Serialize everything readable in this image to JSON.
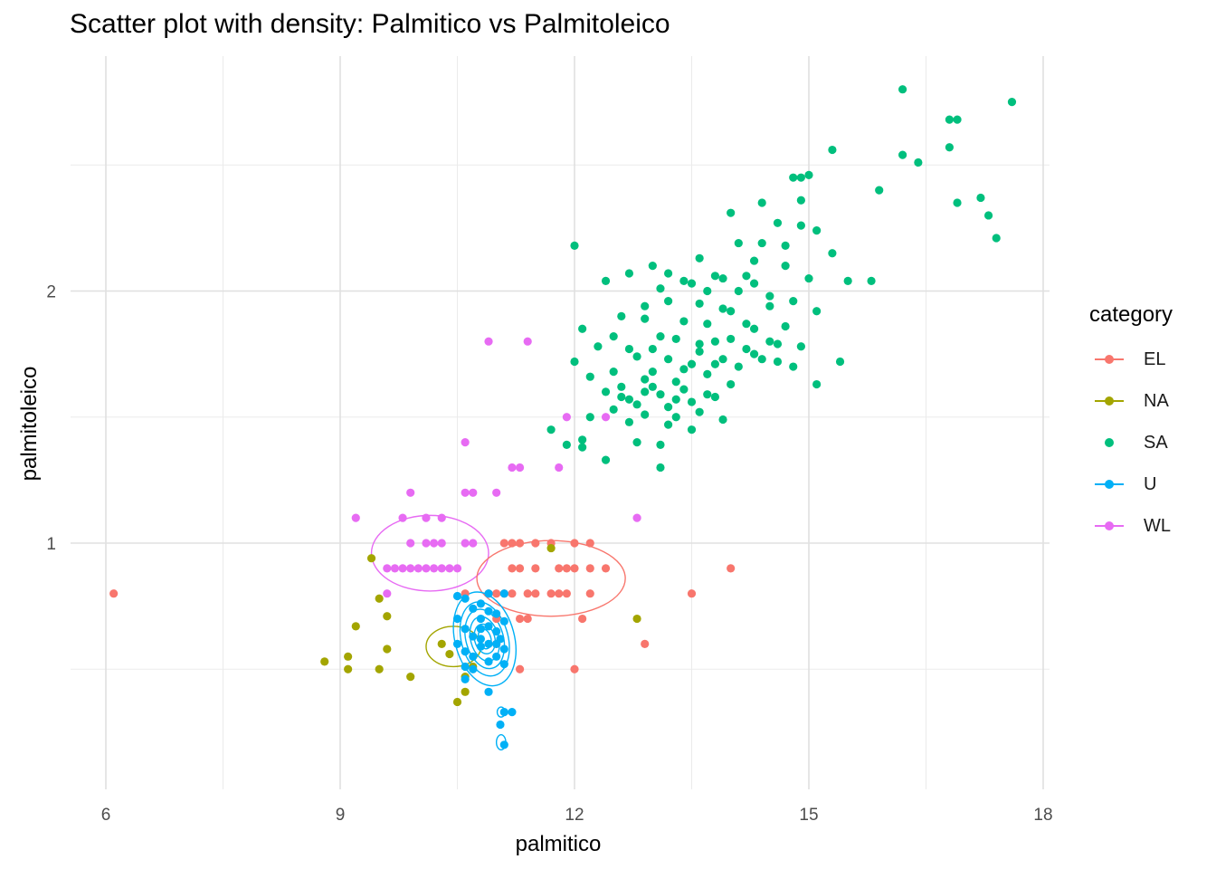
{
  "chart_data": {
    "type": "scatter",
    "title": "Scatter plot with density: Palmitico vs Palmitoleico",
    "xlabel": "palmitico",
    "ylabel": "palmitoleico",
    "xlim": [
      6.0,
      18.0
    ],
    "ylim": [
      0.1,
      2.8
    ],
    "x_ticks": [
      6,
      9,
      12,
      15,
      18
    ],
    "y_ticks": [
      1,
      2
    ],
    "grid": true,
    "legend_title": "category",
    "legend_position": "right",
    "series": [
      {
        "name": "EL",
        "color": "#F8766D",
        "density_contours": true,
        "points": [
          [
            6.1,
            0.8
          ],
          [
            10.6,
            0.8
          ],
          [
            10.9,
            0.8
          ],
          [
            11.0,
            0.8
          ],
          [
            11.1,
            0.8
          ],
          [
            11.2,
            0.8
          ],
          [
            11.4,
            0.8
          ],
          [
            11.5,
            0.8
          ],
          [
            11.7,
            0.8
          ],
          [
            11.8,
            0.8
          ],
          [
            11.9,
            0.8
          ],
          [
            12.2,
            0.8
          ],
          [
            11.2,
            0.9
          ],
          [
            11.3,
            0.9
          ],
          [
            11.5,
            0.9
          ],
          [
            11.8,
            0.9
          ],
          [
            11.9,
            0.9
          ],
          [
            12.0,
            0.9
          ],
          [
            12.2,
            0.9
          ],
          [
            12.4,
            0.9
          ],
          [
            11.1,
            1.0
          ],
          [
            11.2,
            1.0
          ],
          [
            11.3,
            1.0
          ],
          [
            11.5,
            1.0
          ],
          [
            11.7,
            1.0
          ],
          [
            12.0,
            1.0
          ],
          [
            12.2,
            1.0
          ],
          [
            11.0,
            0.7
          ],
          [
            11.3,
            0.7
          ],
          [
            11.4,
            0.7
          ],
          [
            12.1,
            0.7
          ],
          [
            11.0,
            0.6
          ],
          [
            12.9,
            0.6
          ],
          [
            11.3,
            0.5
          ],
          [
            12.0,
            0.5
          ],
          [
            13.5,
            0.8
          ],
          [
            14.0,
            0.9
          ]
        ]
      },
      {
        "name": "NA",
        "color": "#A3A500",
        "density_contours": true,
        "points": [
          [
            8.8,
            0.53
          ],
          [
            9.1,
            0.5
          ],
          [
            9.1,
            0.55
          ],
          [
            9.2,
            0.67
          ],
          [
            9.4,
            0.94
          ],
          [
            9.5,
            0.5
          ],
          [
            9.5,
            0.78
          ],
          [
            9.6,
            0.71
          ],
          [
            9.6,
            0.58
          ],
          [
            9.9,
            0.47
          ],
          [
            10.4,
            0.56
          ],
          [
            10.5,
            0.37
          ],
          [
            10.6,
            0.41
          ],
          [
            10.6,
            0.47
          ],
          [
            10.7,
            0.51
          ],
          [
            11.7,
            0.98
          ],
          [
            12.8,
            0.7
          ],
          [
            10.3,
            0.6
          ]
        ]
      },
      {
        "name": "SA",
        "color": "#00BF7D",
        "density_contours": false,
        "points": [
          [
            16.2,
            2.8
          ],
          [
            15.3,
            2.56
          ],
          [
            17.6,
            2.75
          ],
          [
            16.8,
            2.68
          ],
          [
            16.9,
            2.68
          ],
          [
            16.2,
            2.54
          ],
          [
            16.4,
            2.51
          ],
          [
            16.8,
            2.57
          ],
          [
            14.8,
            2.45
          ],
          [
            14.9,
            2.45
          ],
          [
            15.0,
            2.46
          ],
          [
            15.9,
            2.4
          ],
          [
            14.9,
            2.36
          ],
          [
            14.4,
            2.35
          ],
          [
            17.2,
            2.37
          ],
          [
            16.9,
            2.35
          ],
          [
            17.3,
            2.3
          ],
          [
            17.4,
            2.21
          ],
          [
            12.0,
            2.18
          ],
          [
            14.0,
            2.31
          ],
          [
            14.6,
            2.27
          ],
          [
            14.9,
            2.26
          ],
          [
            15.1,
            2.24
          ],
          [
            14.1,
            2.19
          ],
          [
            14.4,
            2.19
          ],
          [
            14.7,
            2.18
          ],
          [
            15.3,
            2.15
          ],
          [
            13.6,
            2.13
          ],
          [
            14.3,
            2.12
          ],
          [
            14.7,
            2.1
          ],
          [
            13.0,
            2.1
          ],
          [
            12.7,
            2.07
          ],
          [
            13.2,
            2.07
          ],
          [
            13.8,
            2.06
          ],
          [
            14.2,
            2.06
          ],
          [
            15.0,
            2.05
          ],
          [
            15.5,
            2.04
          ],
          [
            13.9,
            2.05
          ],
          [
            14.3,
            2.03
          ],
          [
            15.8,
            2.04
          ],
          [
            13.4,
            2.04
          ],
          [
            13.5,
            2.03
          ],
          [
            12.4,
            2.04
          ],
          [
            13.1,
            2.01
          ],
          [
            13.7,
            2.0
          ],
          [
            14.1,
            2.0
          ],
          [
            14.5,
            1.98
          ],
          [
            14.8,
            1.96
          ],
          [
            13.2,
            1.96
          ],
          [
            13.6,
            1.95
          ],
          [
            12.9,
            1.94
          ],
          [
            13.9,
            1.93
          ],
          [
            14.0,
            1.92
          ],
          [
            15.1,
            1.92
          ],
          [
            12.6,
            1.9
          ],
          [
            12.9,
            1.89
          ],
          [
            13.4,
            1.88
          ],
          [
            13.7,
            1.87
          ],
          [
            14.2,
            1.87
          ],
          [
            14.7,
            1.86
          ],
          [
            12.1,
            1.85
          ],
          [
            12.5,
            1.82
          ],
          [
            13.1,
            1.82
          ],
          [
            13.3,
            1.81
          ],
          [
            13.8,
            1.8
          ],
          [
            14.5,
            1.8
          ],
          [
            12.3,
            1.78
          ],
          [
            12.7,
            1.77
          ],
          [
            13.0,
            1.77
          ],
          [
            13.6,
            1.76
          ],
          [
            14.3,
            1.75
          ],
          [
            12.8,
            1.74
          ],
          [
            13.2,
            1.73
          ],
          [
            13.9,
            1.73
          ],
          [
            14.6,
            1.72
          ],
          [
            15.4,
            1.72
          ],
          [
            12.0,
            1.72
          ],
          [
            13.5,
            1.71
          ],
          [
            14.1,
            1.7
          ],
          [
            14.8,
            1.7
          ],
          [
            12.5,
            1.68
          ],
          [
            13.0,
            1.68
          ],
          [
            13.7,
            1.67
          ],
          [
            12.2,
            1.66
          ],
          [
            12.9,
            1.65
          ],
          [
            13.3,
            1.64
          ],
          [
            14.0,
            1.63
          ],
          [
            15.1,
            1.63
          ],
          [
            12.6,
            1.62
          ],
          [
            13.4,
            1.61
          ],
          [
            12.4,
            1.6
          ],
          [
            13.1,
            1.59
          ],
          [
            13.8,
            1.58
          ],
          [
            12.7,
            1.57
          ],
          [
            13.5,
            1.56
          ],
          [
            12.8,
            1.55
          ],
          [
            13.2,
            1.54
          ],
          [
            12.5,
            1.53
          ],
          [
            13.6,
            1.52
          ],
          [
            12.9,
            1.51
          ],
          [
            13.3,
            1.5
          ],
          [
            13.9,
            1.49
          ],
          [
            12.2,
            1.5
          ],
          [
            12.7,
            1.48
          ],
          [
            13.2,
            1.47
          ],
          [
            13.5,
            1.45
          ],
          [
            11.7,
            1.45
          ],
          [
            12.1,
            1.41
          ],
          [
            12.8,
            1.4
          ],
          [
            13.1,
            1.39
          ],
          [
            11.9,
            1.39
          ],
          [
            12.1,
            1.38
          ],
          [
            12.4,
            1.33
          ],
          [
            13.1,
            1.3
          ],
          [
            14.6,
            1.79
          ],
          [
            14.3,
            1.85
          ],
          [
            13.6,
            1.79
          ],
          [
            14.9,
            1.78
          ],
          [
            14.2,
            1.77
          ],
          [
            13.8,
            1.71
          ],
          [
            13.4,
            1.69
          ],
          [
            12.9,
            1.6
          ],
          [
            13.0,
            1.62
          ],
          [
            12.6,
            1.58
          ],
          [
            13.7,
            1.59
          ],
          [
            13.3,
            1.57
          ],
          [
            14.4,
            1.73
          ],
          [
            14.0,
            1.81
          ],
          [
            14.5,
            1.94
          ]
        ]
      },
      {
        "name": "U",
        "color": "#00B0F6",
        "density_contours": true,
        "points": [
          [
            10.5,
            0.79
          ],
          [
            10.6,
            0.78
          ],
          [
            10.7,
            0.74
          ],
          [
            10.8,
            0.76
          ],
          [
            10.9,
            0.73
          ],
          [
            11.0,
            0.72
          ],
          [
            11.1,
            0.8
          ],
          [
            10.5,
            0.7
          ],
          [
            10.6,
            0.66
          ],
          [
            10.7,
            0.63
          ],
          [
            10.8,
            0.66
          ],
          [
            10.9,
            0.6
          ],
          [
            11.0,
            0.65
          ],
          [
            11.1,
            0.58
          ],
          [
            10.6,
            0.57
          ],
          [
            10.7,
            0.55
          ],
          [
            10.8,
            0.62
          ],
          [
            10.9,
            0.67
          ],
          [
            11.0,
            0.6
          ],
          [
            11.1,
            0.69
          ],
          [
            10.5,
            0.6
          ],
          [
            10.6,
            0.51
          ],
          [
            10.7,
            0.5
          ],
          [
            10.8,
            0.59
          ],
          [
            10.9,
            0.53
          ],
          [
            11.0,
            0.55
          ],
          [
            11.1,
            0.52
          ],
          [
            10.6,
            0.46
          ],
          [
            10.9,
            0.41
          ],
          [
            11.1,
            0.33
          ],
          [
            11.2,
            0.33
          ],
          [
            11.1,
            0.2
          ],
          [
            11.05,
            0.28
          ],
          [
            10.8,
            0.7
          ],
          [
            11.05,
            0.62
          ],
          [
            10.9,
            0.8
          ]
        ]
      },
      {
        "name": "WL",
        "color": "#E76BF3",
        "density_contours": true,
        "points": [
          [
            10.9,
            1.8
          ],
          [
            11.4,
            1.8
          ],
          [
            11.9,
            1.5
          ],
          [
            12.4,
            1.5
          ],
          [
            10.6,
            1.4
          ],
          [
            11.2,
            1.3
          ],
          [
            11.3,
            1.3
          ],
          [
            11.8,
            1.3
          ],
          [
            9.9,
            1.2
          ],
          [
            10.6,
            1.2
          ],
          [
            10.7,
            1.2
          ],
          [
            11.0,
            1.2
          ],
          [
            9.2,
            1.1
          ],
          [
            9.8,
            1.1
          ],
          [
            10.1,
            1.1
          ],
          [
            10.3,
            1.1
          ],
          [
            12.8,
            1.1
          ],
          [
            9.9,
            1.0
          ],
          [
            10.1,
            1.0
          ],
          [
            10.2,
            1.0
          ],
          [
            10.3,
            1.0
          ],
          [
            10.6,
            1.0
          ],
          [
            10.7,
            1.0
          ],
          [
            9.6,
            0.9
          ],
          [
            9.7,
            0.9
          ],
          [
            9.8,
            0.9
          ],
          [
            9.9,
            0.9
          ],
          [
            10.0,
            0.9
          ],
          [
            10.1,
            0.9
          ],
          [
            10.2,
            0.9
          ],
          [
            10.3,
            0.9
          ],
          [
            10.4,
            0.9
          ],
          [
            10.5,
            0.9
          ],
          [
            9.6,
            0.8
          ]
        ]
      }
    ]
  },
  "plot_title": "Scatter plot with density: Palmitico vs Palmitoleico",
  "x_axis": {
    "label": "palmitico"
  },
  "y_axis": {
    "label": "palmitoleico"
  },
  "legend": {
    "title": "category"
  }
}
